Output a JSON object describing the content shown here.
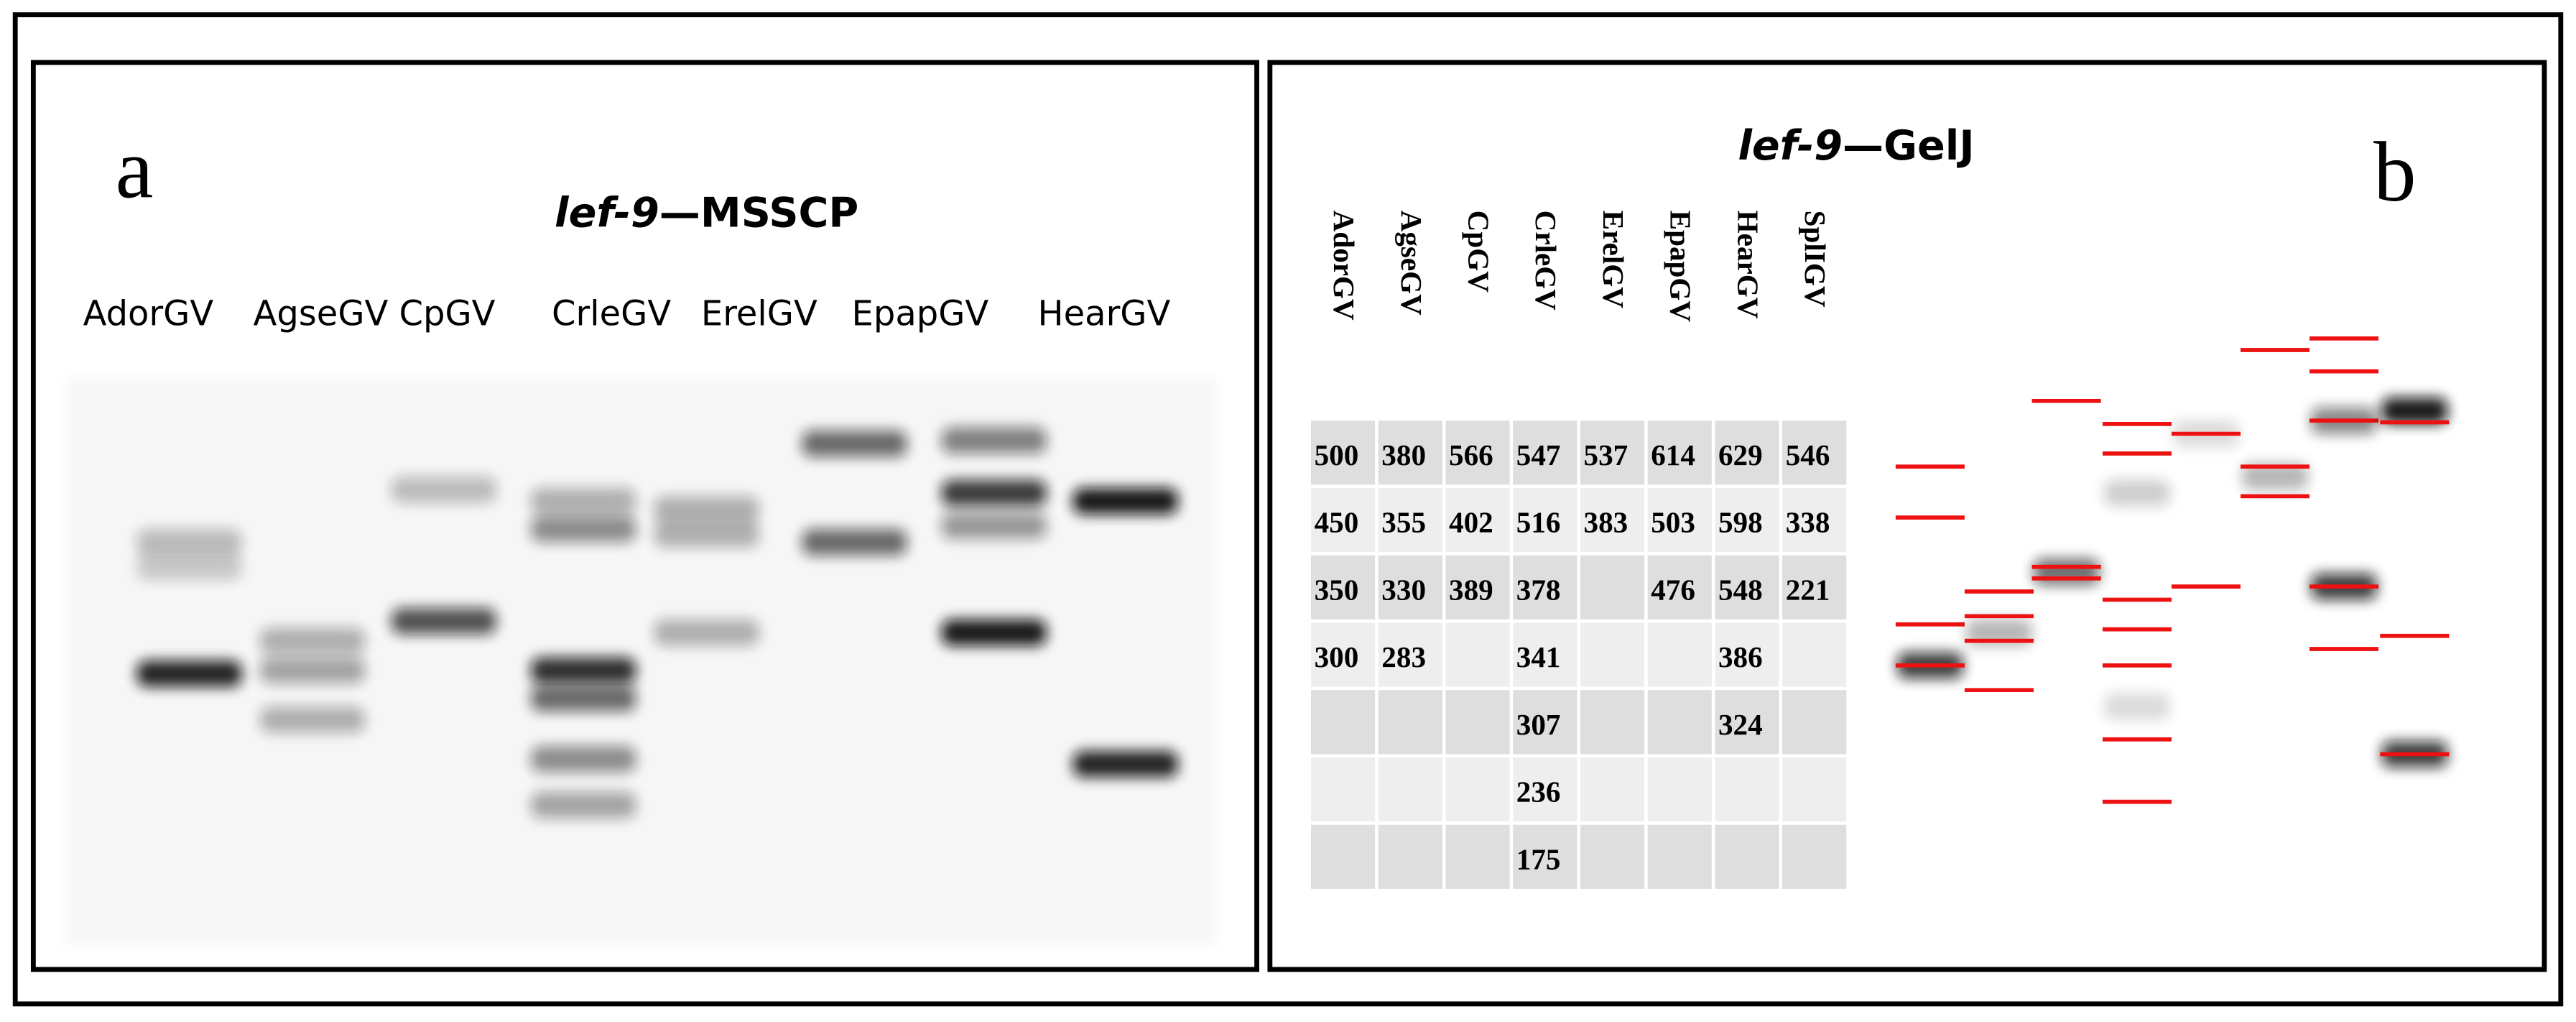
{
  "panel_a": {
    "label": "a",
    "title": {
      "italic": "lef-9",
      "rest": "—MSSCP"
    },
    "lanes": [
      "AdorGV",
      "AgseGV",
      "CpGV",
      "CrleGV",
      "ErelGV",
      "EpapGV",
      "HearGV"
    ]
  },
  "panel_b": {
    "label": "b",
    "title": {
      "italic": "lef-9",
      "rest": "—GelJ"
    },
    "table": {
      "header": [
        "AdorGV",
        "AgseGV",
        "CpGV",
        "CrleGV",
        "ErelGV",
        "EpapGV",
        "HearGV",
        "SplIGV"
      ],
      "rows": [
        [
          500,
          380,
          566,
          547,
          537,
          614,
          629,
          546
        ],
        [
          450,
          355,
          402,
          516,
          383,
          503,
          598,
          338
        ],
        [
          350,
          330,
          389,
          378,
          null,
          476,
          548,
          221
        ],
        [
          300,
          283,
          null,
          341,
          null,
          null,
          386,
          null
        ],
        [
          null,
          null,
          null,
          307,
          null,
          null,
          324,
          null
        ],
        [
          null,
          null,
          null,
          236,
          null,
          null,
          null,
          null
        ],
        [
          null,
          null,
          null,
          175,
          null,
          null,
          null,
          null
        ]
      ]
    }
  }
}
